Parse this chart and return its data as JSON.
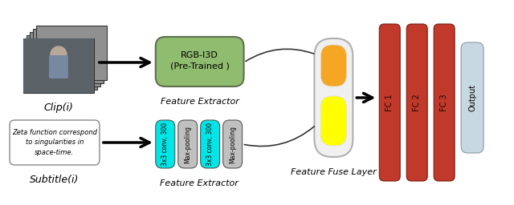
{
  "bg_color": "#ffffff",
  "clip_label": "Clip(i)",
  "subtitle_label": "Subtitle(i)",
  "subtitle_box_text": "Zeta function correspond\nto singularities in\nspace-time.",
  "feature_extractor_top_label": "Feature Extractor",
  "feature_extractor_bot_label": "Feature Extractor",
  "rgb_i3d_text": "RGB-I3D\n(Pre-Trained )",
  "rgb_i3d_color": "#8fbc6e",
  "conv_colors": [
    "#00e5e5",
    "#c0c0c0",
    "#00e5e5",
    "#c0c0c0"
  ],
  "conv_labels": [
    "3x3 conv, 300",
    "Max-pooling",
    "3x3 conv, 300",
    "Max-pooling"
  ],
  "fuse_outer_color": "#f0f0f0",
  "fuse_outer_ec": "#b0b0b0",
  "fuse_top_color": "#f5a623",
  "fuse_bot_color": "#ffff00",
  "fc_color": "#c0392b",
  "fc_labels": [
    "FC 1",
    "FC 2",
    "FC 3"
  ],
  "output_color": "#c8d8e0",
  "output_label": "Output",
  "feature_fuse_label": "Feature Fuse Layer",
  "arrow_color": "#000000",
  "curve_color": "#333333",
  "clip_stack_color": "#909090",
  "clip_front_color": "#606870",
  "subtitle_box_ec": "#888888",
  "subtitle_box_fc": "#ffffff"
}
